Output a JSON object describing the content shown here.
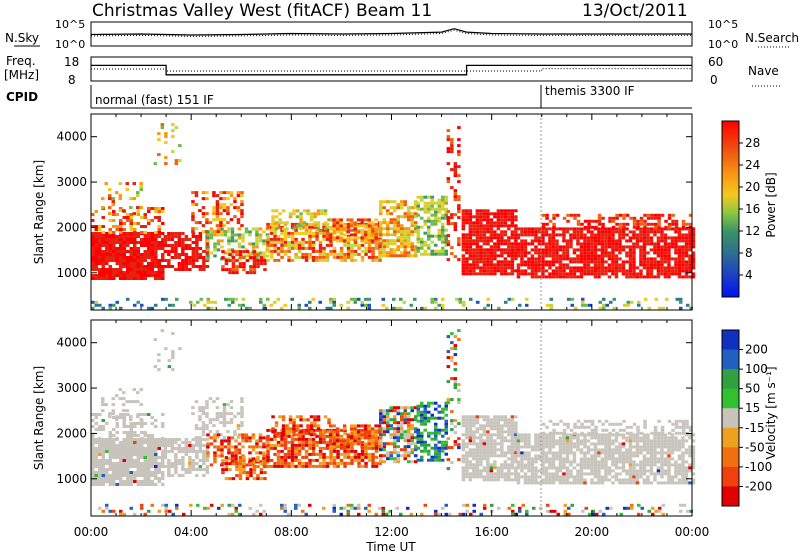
{
  "header": {
    "title": "Christmas Valley West (fitACF)",
    "beam": "Beam 11",
    "date": "13/Oct/2011"
  },
  "strips": {
    "nsky_label": "N.Sky",
    "nsearch_label": "N.Search",
    "noise_ticks": [
      "10^5",
      "10^0"
    ],
    "freq_label_1": "Freq.",
    "freq_label_2": "[MHz]",
    "freq_ticks": [
      "18",
      "8"
    ],
    "nave_label": "Nave",
    "nave_ticks": [
      "60",
      "0"
    ],
    "cpid_label": "CPID",
    "cpid_segments": [
      {
        "label": "normal (fast) 151 IF",
        "start_hour": 0.0
      },
      {
        "label": "themis 3300 IF",
        "start_hour": 18.0
      }
    ]
  },
  "colors": {
    "power_scale": [
      "#0018f0",
      "#1f4fbf",
      "#2e7a8c",
      "#3b9a6a",
      "#6fba4a",
      "#bfd640",
      "#f6c81e",
      "#f79a10",
      "#f06010",
      "#e82010",
      "#ff0000"
    ],
    "velocity_scale": [
      "#e00000",
      "#f04010",
      "#f07010",
      "#f0a020",
      "#c8c4bc",
      "#c8c4bc",
      "#30c030",
      "#30a040",
      "#2060c0",
      "#1030c0"
    ],
    "ground_scatter": "#c8c4bc"
  },
  "chart_data": [
    {
      "type": "line",
      "name": "noise",
      "x_label": "",
      "y_ticks": [
        "10^5",
        "10^0"
      ],
      "series": [
        {
          "name": "N.Sky",
          "x": [
            0,
            2,
            4,
            6,
            8,
            10,
            12,
            14,
            14.5,
            15,
            16,
            18,
            20,
            24
          ],
          "values": [
            2.4,
            2.5,
            2.3,
            2.4,
            2.6,
            2.5,
            2.6,
            2.9,
            3.6,
            2.9,
            2.6,
            2.5,
            2.5,
            2.5
          ]
        },
        {
          "name": "N.Search",
          "x": [
            0,
            2,
            4,
            6,
            8,
            10,
            12,
            14,
            14.5,
            15,
            16,
            18,
            20,
            24
          ],
          "values": [
            2.1,
            2.2,
            2.0,
            2.1,
            2.3,
            2.2,
            2.3,
            2.6,
            3.3,
            2.6,
            2.3,
            2.2,
            2.2,
            2.2
          ]
        }
      ]
    },
    {
      "type": "line",
      "name": "frequency",
      "y_ticks_left": [
        "18",
        "8"
      ],
      "y_ticks_right": [
        "60",
        "0"
      ],
      "series": [
        {
          "name": "Freq.",
          "x": [
            0,
            3.0,
            3.0,
            15.0,
            15.0,
            24
          ],
          "values": [
            14.5,
            14.5,
            10.6,
            10.6,
            14.5,
            14.5
          ]
        },
        {
          "name": "Nave",
          "x": [
            0,
            3.0,
            3.0,
            18.0,
            18.0,
            24
          ],
          "values": [
            30,
            30,
            25,
            25,
            31,
            31
          ]
        }
      ]
    },
    {
      "type": "heatmap",
      "name": "power",
      "ylabel": "Slant Range [km]",
      "xlabel": "Time UT",
      "x_ticks": [
        "00:00",
        "04:00",
        "08:00",
        "12:00",
        "16:00",
        "20:00",
        "00:00"
      ],
      "y_ticks": [
        "1000",
        "2000",
        "3000",
        "4000"
      ],
      "ylim": [
        180,
        4500
      ],
      "colorbar_label": "Power [dB]",
      "colorbar_ticks": [
        "4",
        "8",
        "12",
        "16",
        "20",
        "24",
        "28"
      ],
      "colorbar_range": [
        0,
        32
      ]
    },
    {
      "type": "heatmap",
      "name": "velocity",
      "ylabel": "Slant Range [km]",
      "xlabel": "Time UT",
      "x_ticks": [
        "00:00",
        "04:00",
        "08:00",
        "12:00",
        "16:00",
        "20:00",
        "00:00"
      ],
      "y_ticks": [
        "1000",
        "2000",
        "3000",
        "4000"
      ],
      "ylim": [
        180,
        4500
      ],
      "colorbar_label": "Velocity [m s⁻¹]",
      "colorbar_ticks": [
        "200",
        "100",
        "50",
        "15",
        "-15",
        "-50",
        "-100",
        "-200"
      ]
    }
  ],
  "footer": {
    "xlabel": "Time UT",
    "x_ticks": [
      "00:00",
      "04:00",
      "08:00",
      "12:00",
      "16:00",
      "20:00",
      "00:00"
    ]
  }
}
